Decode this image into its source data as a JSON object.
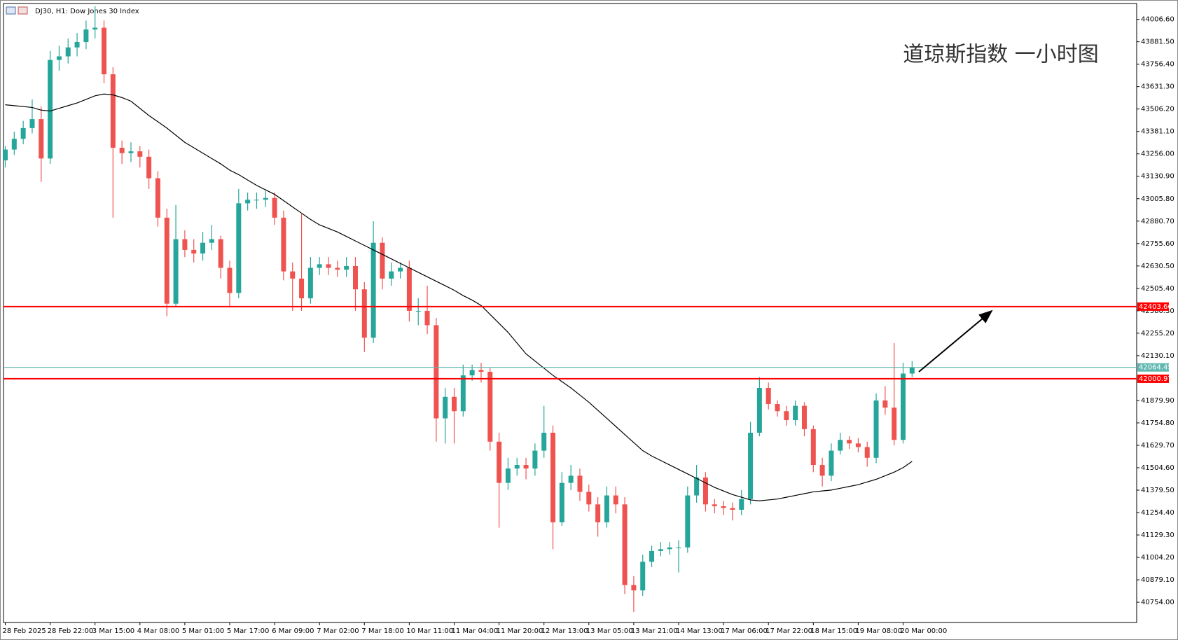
{
  "chart_data": {
    "type": "candlestick",
    "title": "DJ30, H1:  Dow Jones 30 Index",
    "annotation": "道琼斯指数 一小时图",
    "up_color": "#26a69a",
    "down_color": "#ef5350",
    "categories": [
      "28 Feb 2025",
      null,
      null,
      null,
      null,
      "28 Feb 22:00",
      null,
      null,
      null,
      null,
      "3 Mar 15:00",
      null,
      null,
      null,
      null,
      "4 Mar 08:00",
      null,
      null,
      null,
      null,
      "5 Mar 01:00",
      null,
      null,
      null,
      null,
      "5 Mar 17:00",
      null,
      null,
      null,
      null,
      "6 Mar 09:00",
      null,
      null,
      null,
      null,
      "7 Mar 02:00",
      null,
      null,
      null,
      null,
      "7 Mar 18:00",
      null,
      null,
      null,
      null,
      "10 Mar 11:00",
      null,
      null,
      null,
      null,
      "11 Mar 04:00",
      null,
      null,
      null,
      null,
      "11 Mar 20:00",
      null,
      null,
      null,
      null,
      "12 Mar 13:00",
      null,
      null,
      null,
      null,
      "13 Mar 05:00",
      null,
      null,
      null,
      null,
      "13 Mar 21:00",
      null,
      null,
      null,
      null,
      "14 Mar 13:00",
      null,
      null,
      null,
      null,
      "17 Mar 06:00",
      null,
      null,
      null,
      null,
      "17 Mar 22:00",
      null,
      null,
      null,
      null,
      "18 Mar 15:00",
      null,
      null,
      null,
      null,
      "19 Mar 08:00",
      null,
      null,
      null,
      null,
      "20 Mar 00:00",
      null
    ],
    "ohlc": [
      [
        43220,
        43300,
        43180,
        43280
      ],
      [
        43280,
        43380,
        43250,
        43340
      ],
      [
        43340,
        43440,
        43310,
        43400
      ],
      [
        43400,
        43560,
        43370,
        43450
      ],
      [
        43450,
        43520,
        43100,
        43230
      ],
      [
        43230,
        43830,
        43200,
        43780
      ],
      [
        43780,
        43860,
        43720,
        43800
      ],
      [
        43800,
        43900,
        43760,
        43850
      ],
      [
        43850,
        43930,
        43800,
        43880
      ],
      [
        43880,
        44000,
        43840,
        43950
      ],
      [
        43950,
        44080,
        43900,
        43960
      ],
      [
        43960,
        44000,
        43650,
        43700
      ],
      [
        43700,
        43740,
        42900,
        43290
      ],
      [
        43290,
        43330,
        43200,
        43260
      ],
      [
        43260,
        43320,
        43210,
        43270
      ],
      [
        43270,
        43300,
        43180,
        43240
      ],
      [
        43240,
        43280,
        43060,
        43120
      ],
      [
        43120,
        43160,
        42850,
        42900
      ],
      [
        42900,
        42950,
        42350,
        42420
      ],
      [
        42420,
        42970,
        42400,
        42780
      ],
      [
        42780,
        42830,
        42680,
        42720
      ],
      [
        42720,
        42780,
        42650,
        42700
      ],
      [
        42700,
        42820,
        42660,
        42760
      ],
      [
        42760,
        42860,
        42720,
        42780
      ],
      [
        42780,
        42800,
        42560,
        42620
      ],
      [
        42620,
        42660,
        42400,
        42480
      ],
      [
        42480,
        43060,
        42450,
        42980
      ],
      [
        42980,
        43040,
        42940,
        43000
      ],
      [
        43000,
        43040,
        42950,
        43000
      ],
      [
        43000,
        43050,
        42960,
        43010
      ],
      [
        43010,
        43040,
        42860,
        42900
      ],
      [
        42900,
        42940,
        42550,
        42600
      ],
      [
        42600,
        42650,
        42380,
        42560
      ],
      [
        42560,
        42920,
        42380,
        42450
      ],
      [
        42450,
        42680,
        42420,
        42620
      ],
      [
        42620,
        42680,
        42580,
        42640
      ],
      [
        42640,
        42680,
        42580,
        42620
      ],
      [
        42620,
        42660,
        42570,
        42610
      ],
      [
        42610,
        42680,
        42570,
        42630
      ],
      [
        42630,
        42680,
        42380,
        42500
      ],
      [
        42500,
        42540,
        42150,
        42230
      ],
      [
        42230,
        42880,
        42200,
        42760
      ],
      [
        42760,
        42790,
        42500,
        42560
      ],
      [
        42560,
        42650,
        42520,
        42600
      ],
      [
        42600,
        42650,
        42560,
        42620
      ],
      [
        42620,
        42660,
        42320,
        42380
      ],
      [
        42380,
        42450,
        42300,
        42380
      ],
      [
        42380,
        42520,
        42250,
        42300
      ],
      [
        42300,
        42340,
        41650,
        41780
      ],
      [
        41780,
        41950,
        41640,
        41900
      ],
      [
        41900,
        41950,
        41640,
        41820
      ],
      [
        41820,
        42080,
        41790,
        42020
      ],
      [
        42020,
        42080,
        41990,
        42050
      ],
      [
        42050,
        42090,
        41980,
        42040
      ],
      [
        42040,
        42060,
        41600,
        41650
      ],
      [
        41650,
        41700,
        41170,
        41420
      ],
      [
        41420,
        41560,
        41380,
        41500
      ],
      [
        41500,
        41560,
        41460,
        41520
      ],
      [
        41520,
        41560,
        41440,
        41500
      ],
      [
        41500,
        41640,
        41460,
        41600
      ],
      [
        41600,
        41850,
        41560,
        41700
      ],
      [
        41700,
        41740,
        41050,
        41200
      ],
      [
        41200,
        41480,
        41180,
        41420
      ],
      [
        41420,
        41520,
        41380,
        41460
      ],
      [
        41460,
        41500,
        41320,
        41370
      ],
      [
        41370,
        41410,
        41260,
        41300
      ],
      [
        41300,
        41340,
        41120,
        41200
      ],
      [
        41200,
        41400,
        41170,
        41350
      ],
      [
        41350,
        41400,
        41250,
        41300
      ],
      [
        41300,
        41340,
        40800,
        40850
      ],
      [
        40850,
        40900,
        40700,
        40820
      ],
      [
        40820,
        41020,
        40790,
        40980
      ],
      [
        40980,
        41070,
        40950,
        41040
      ],
      [
        41040,
        41090,
        41010,
        41050
      ],
      [
        41050,
        41090,
        41020,
        41060
      ],
      [
        41060,
        41100,
        40920,
        41060
      ],
      [
        41060,
        41400,
        41030,
        41350
      ],
      [
        41350,
        41520,
        41310,
        41450
      ],
      [
        41450,
        41480,
        41260,
        41300
      ],
      [
        41300,
        41330,
        41250,
        41290
      ],
      [
        41290,
        41320,
        41240,
        41280
      ],
      [
        41280,
        41310,
        41210,
        41270
      ],
      [
        41270,
        41380,
        41240,
        41330
      ],
      [
        41330,
        41760,
        41300,
        41700
      ],
      [
        41700,
        42010,
        41680,
        41950
      ],
      [
        41950,
        41980,
        41830,
        41860
      ],
      [
        41860,
        41880,
        41790,
        41820
      ],
      [
        41820,
        41850,
        41740,
        41770
      ],
      [
        41770,
        41880,
        41740,
        41850
      ],
      [
        41850,
        41870,
        41680,
        41720
      ],
      [
        41720,
        41740,
        41480,
        41520
      ],
      [
        41520,
        41560,
        41400,
        41460
      ],
      [
        41460,
        41640,
        41430,
        41600
      ],
      [
        41600,
        41700,
        41580,
        41660
      ],
      [
        41660,
        41680,
        41610,
        41640
      ],
      [
        41640,
        41670,
        41590,
        41620
      ],
      [
        41620,
        41650,
        41510,
        41560
      ],
      [
        41560,
        41920,
        41530,
        41880
      ],
      [
        41880,
        41960,
        41800,
        41840
      ],
      [
        41840,
        42200,
        41630,
        41660
      ],
      [
        41660,
        42090,
        41640,
        42030
      ],
      [
        42030,
        42100,
        42010,
        42064.45
      ]
    ],
    "ma": {
      "color": "#000000",
      "values": [
        43530,
        43525,
        43520,
        43515,
        43500,
        43495,
        43510,
        43525,
        43540,
        43560,
        43580,
        43590,
        43585,
        43570,
        43550,
        43510,
        43470,
        43435,
        43400,
        43360,
        43320,
        43290,
        43260,
        43230,
        43200,
        43165,
        43140,
        43110,
        43080,
        43055,
        43030,
        42995,
        42960,
        42925,
        42890,
        42860,
        42840,
        42820,
        42795,
        42770,
        42745,
        42720,
        42695,
        42670,
        42645,
        42620,
        42595,
        42570,
        42545,
        42520,
        42495,
        42465,
        42440,
        42410,
        42360,
        42310,
        42260,
        42200,
        42140,
        42100,
        42060,
        42020,
        41985,
        41950,
        41910,
        41870,
        41825,
        41780,
        41735,
        41690,
        41645,
        41600,
        41570,
        41545,
        41520,
        41495,
        41470,
        41445,
        41420,
        41395,
        41375,
        41355,
        41340,
        41325,
        41320,
        41325,
        41330,
        41340,
        41350,
        41360,
        41370,
        41375,
        41380,
        41390,
        41400,
        41410,
        41425,
        41440,
        41460,
        41480,
        41505,
        41540
      ]
    },
    "hlines": [
      {
        "value": 42403.66,
        "color": "#ff0000"
      },
      {
        "value": 42064.45,
        "color": "#5fb7b0"
      },
      {
        "value": 42000.97,
        "color": "#ff0000"
      }
    ],
    "ylim": [
      40641,
      44095
    ],
    "yticks": [
      {
        "value": 44006.6,
        "label": "44006.60"
      },
      {
        "value": 43881.5,
        "label": "43881.50"
      },
      {
        "value": 43756.4,
        "label": "43756.40"
      },
      {
        "value": 43631.3,
        "label": "43631.30"
      },
      {
        "value": 43506.2,
        "label": "43506.20"
      },
      {
        "value": 43381.1,
        "label": "43381.10"
      },
      {
        "value": 43256,
        "label": "43256.00"
      },
      {
        "value": 43130.9,
        "label": "43130.90"
      },
      {
        "value": 43005.8,
        "label": "43005.80"
      },
      {
        "value": 42880.7,
        "label": "42880.70"
      },
      {
        "value": 42755.6,
        "label": "42755.60"
      },
      {
        "value": 42630.5,
        "label": "42630.50"
      },
      {
        "value": 42505.4,
        "label": "42505.40"
      },
      {
        "value": 42380.3,
        "label": "42380.30"
      },
      {
        "value": 42255.2,
        "label": "42255.20"
      },
      {
        "value": 42130.1,
        "label": "42130.10"
      },
      {
        "value": 41879.9,
        "label": "41879.90"
      },
      {
        "value": 41754.8,
        "label": "41754.80"
      },
      {
        "value": 41629.7,
        "label": "41629.70"
      },
      {
        "value": 41504.6,
        "label": "41504.60"
      },
      {
        "value": 41379.5,
        "label": "41379.50"
      },
      {
        "value": 41254.4,
        "label": "41254.40"
      },
      {
        "value": 41129.3,
        "label": "41129.30"
      },
      {
        "value": 41004.2,
        "label": "41004.20"
      },
      {
        "value": 40879.1,
        "label": "40879.10"
      },
      {
        "value": 40754,
        "label": "40754.00"
      }
    ]
  }
}
